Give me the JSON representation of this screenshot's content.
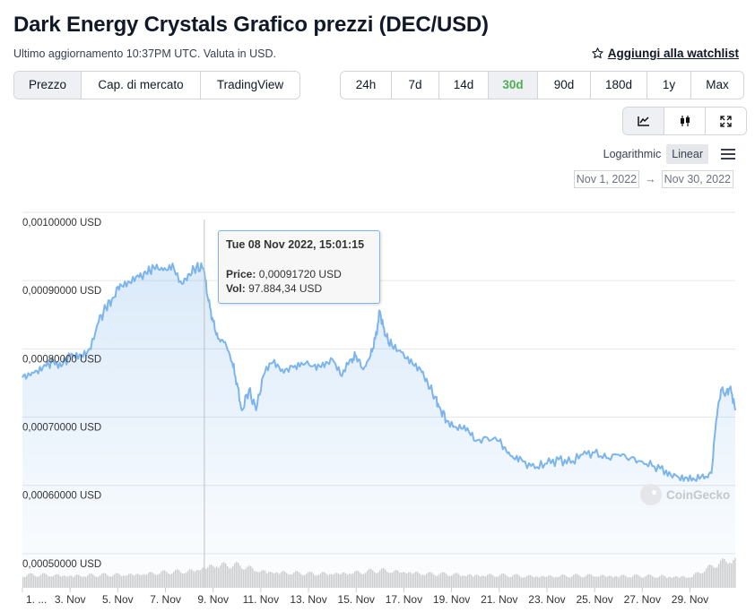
{
  "header": {
    "title": "Dark Energy Crystals Grafico prezzi (DEC/USD)",
    "subtitle": "Ultimo aggiornamento 10:37PM UTC. Valuta in USD.",
    "watchlist_label": "Aggiungi alla watchlist"
  },
  "view_tabs": [
    {
      "label": "Prezzo",
      "active": true
    },
    {
      "label": "Cap. di mercato",
      "active": false
    },
    {
      "label": "TradingView",
      "active": false
    }
  ],
  "period_tabs": [
    {
      "label": "24h",
      "active": false
    },
    {
      "label": "7d",
      "active": false
    },
    {
      "label": "14d",
      "active": false
    },
    {
      "label": "30d",
      "active": true
    },
    {
      "label": "90d",
      "active": false
    },
    {
      "label": "180d",
      "active": false
    },
    {
      "label": "1y",
      "active": false
    },
    {
      "label": "Max",
      "active": false
    }
  ],
  "chart_tools": {
    "icons": [
      "line-chart-icon",
      "candlestick-icon",
      "fullscreen-icon"
    ],
    "scale_log": "Logarithmic",
    "scale_linear": "Linear",
    "date_from": "Nov 1, 2022",
    "date_arrow": "→",
    "date_to": "Nov 30, 2022"
  },
  "tooltip": {
    "title": "Tue 08 Nov 2022, 15:01:15",
    "price_label": "Price:",
    "price_value": "0,00091720 USD",
    "vol_label": "Vol:",
    "vol_value": "97.884,34 USD"
  },
  "watermark": "CoinGecko",
  "colors": {
    "line": "#7cb5ec",
    "active_period": "#4caf50",
    "volume": "#cfcfcf"
  },
  "chart_data": {
    "type": "line",
    "title": "",
    "xlabel": "",
    "ylabel": "",
    "ylim": [
      0.00045,
      0.001
    ],
    "y_ticks": [
      "0,00100000 USD",
      "0,00090000 USD",
      "0,00080000 USD",
      "0,00070000 USD",
      "0,00060000 USD",
      "0,00050000 USD"
    ],
    "y_tick_values": [
      0.001,
      0.0009,
      0.0008,
      0.0007,
      0.0006,
      0.0005
    ],
    "x_ticks": [
      "1. ...",
      "3. Nov",
      "5. Nov",
      "7. Nov",
      "9. Nov",
      "11. Nov",
      "13. Nov",
      "15. Nov",
      "17. Nov",
      "19. Nov",
      "21. Nov",
      "23. Nov",
      "25. Nov",
      "27. Nov",
      "29. Nov"
    ],
    "x_tick_days": [
      1,
      3,
      5,
      7,
      9,
      11,
      13,
      15,
      17,
      19,
      21,
      23,
      25,
      27,
      29
    ],
    "x_range_days": [
      1.0,
      30.9
    ],
    "hover_day": 8.63,
    "series": [
      {
        "x": [
          1.0,
          1.3,
          1.6,
          2.0,
          2.3,
          2.7,
          3.0,
          3.4,
          3.8,
          4.2,
          4.5,
          4.8,
          5.1,
          5.5,
          5.9,
          6.2,
          6.5,
          6.9,
          7.3,
          7.7,
          8.0,
          8.3,
          8.6,
          8.8,
          9.0,
          9.2,
          9.5,
          9.8,
          10.0,
          10.2,
          10.5,
          10.8,
          11.1,
          11.5,
          11.9,
          12.3,
          12.7,
          13.2,
          13.6,
          14.0,
          14.4,
          14.8,
          15.0,
          15.3,
          15.6,
          15.8,
          16.0,
          16.2,
          16.5,
          16.9,
          17.3,
          17.7,
          18.0,
          18.3,
          18.5,
          18.8,
          19.2,
          19.6,
          20.0,
          20.5,
          21.0,
          21.3,
          21.6,
          22.0,
          22.5,
          23.0,
          23.5,
          24.0,
          24.5,
          25.0,
          25.5,
          26.0,
          26.5,
          27.0,
          27.5,
          28.0,
          28.4,
          28.8,
          29.2,
          29.6,
          29.9,
          30.1,
          30.3,
          30.5,
          30.7,
          30.9
        ],
        "values": [
          0.000758,
          0.000762,
          0.000768,
          0.000775,
          0.000782,
          0.000778,
          0.00079,
          0.000792,
          0.0008,
          0.00084,
          0.00086,
          0.000875,
          0.000895,
          0.000898,
          0.000905,
          0.00091,
          0.00092,
          0.000915,
          0.000925,
          0.000895,
          0.00091,
          0.00092,
          0.000917,
          0.00087,
          0.00084,
          0.000815,
          0.00081,
          0.00078,
          0.00075,
          0.00071,
          0.00074,
          0.00071,
          0.00076,
          0.00078,
          0.00077,
          0.000775,
          0.00078,
          0.000775,
          0.00078,
          0.000785,
          0.00076,
          0.000785,
          0.00079,
          0.00077,
          0.00079,
          0.000815,
          0.000855,
          0.00082,
          0.000805,
          0.000795,
          0.000785,
          0.00077,
          0.00075,
          0.00073,
          0.000715,
          0.000695,
          0.000685,
          0.00068,
          0.000665,
          0.00067,
          0.000665,
          0.00065,
          0.00064,
          0.000635,
          0.000625,
          0.000632,
          0.000638,
          0.000633,
          0.000645,
          0.000648,
          0.00064,
          0.000645,
          0.00064,
          0.000635,
          0.000628,
          0.000622,
          0.000615,
          0.000612,
          0.000608,
          0.00061,
          0.000618,
          0.000695,
          0.00074,
          0.000735,
          0.000745,
          0.00071
        ]
      }
    ],
    "volume": {
      "x": [
        1,
        2,
        3,
        4,
        5,
        6,
        7,
        8,
        9,
        10,
        11,
        12,
        13,
        14,
        15,
        16,
        17,
        18,
        19,
        20,
        21,
        22,
        23,
        24,
        25,
        26,
        27,
        28,
        29,
        30,
        30.5,
        30.9
      ],
      "values": [
        0.45,
        0.46,
        0.44,
        0.45,
        0.47,
        0.5,
        0.55,
        0.6,
        0.82,
        0.8,
        0.6,
        0.55,
        0.5,
        0.52,
        0.55,
        0.62,
        0.58,
        0.5,
        0.48,
        0.46,
        0.45,
        0.42,
        0.42,
        0.43,
        0.44,
        0.43,
        0.42,
        0.41,
        0.4,
        0.8,
        0.98,
        1.0
      ]
    }
  }
}
